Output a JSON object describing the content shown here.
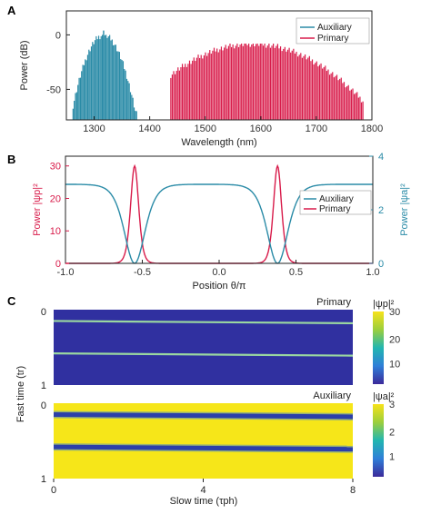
{
  "colors": {
    "primary": "#d81b4a",
    "auxiliary": "#2a8ba7"
  },
  "chart_data": [
    {
      "panel": "A",
      "type": "bar",
      "xlabel": "Wavelength (nm)",
      "ylabel": "Power (dB)",
      "xlim": [
        1250,
        1800
      ],
      "ylim": [
        -78,
        22
      ],
      "xticks": [
        "1300",
        "1400",
        "1500",
        "1600",
        "1700",
        "1800"
      ],
      "yticks": [
        "0",
        "-50"
      ],
      "legend": {
        "position": "top-right",
        "entries": [
          "Auxiliary",
          "Primary"
        ]
      },
      "series": [
        {
          "name": "Auxiliary",
          "color": "#2a8ba7",
          "center": 1317,
          "half_width": 58,
          "peak": 0,
          "floor": -72,
          "spacing": 2.2,
          "x_range": [
            1262,
            1377
          ]
        },
        {
          "name": "Primary",
          "color": "#d81b4a",
          "center": 1585,
          "half_width": 220,
          "peak": -8,
          "floor": -72,
          "spacing": 2.6,
          "x_range": [
            1438,
            1785
          ]
        }
      ]
    },
    {
      "panel": "B",
      "type": "line",
      "xlabel": "Position θ/π",
      "ylabel_left": "Power |ψp|²",
      "ylabel_right": "Power |ψa|²",
      "xlim": [
        -1.0,
        1.0
      ],
      "ylim_left": [
        0,
        33
      ],
      "ylim_right": [
        0,
        4
      ],
      "xticks": [
        "-1.0",
        "-0.5",
        "0.0",
        "0.5",
        "1.0"
      ],
      "yticks_left": [
        "0",
        "10",
        "20",
        "30"
      ],
      "yticks_right": [
        "0",
        "2",
        "4"
      ],
      "legend": {
        "position": "center-right",
        "entries": [
          "Auxiliary",
          "Primary"
        ]
      },
      "series": [
        {
          "name": "Primary",
          "axis": "left",
          "color": "#d81b4a",
          "peak": 30,
          "centers": [
            -0.55,
            0.38
          ],
          "width": 0.035
        },
        {
          "name": "Auxiliary",
          "axis": "right",
          "color": "#2a8ba7",
          "baseline": 2.95,
          "dip_to": 0,
          "centers": [
            -0.55,
            0.38
          ],
          "width": 0.09
        }
      ]
    },
    {
      "panel": "C",
      "type": "heatmap",
      "xlabel": "Slow time (τph)",
      "ylabel": "Fast time (tr)",
      "xticks": [
        "0",
        "4",
        "8"
      ],
      "yticks": [
        "0",
        "1"
      ],
      "maps": [
        {
          "name": "Primary",
          "colorbar_label": "|ψp|²",
          "colorbar_ticks": [
            "30",
            "20",
            "10"
          ],
          "background": "#3030a0",
          "pulse_start": [
            0.15,
            0.58
          ],
          "pulse_end": [
            0.18,
            0.61
          ],
          "pulse_color": "#9ad7a0"
        },
        {
          "name": "Auxiliary",
          "colorbar_label": "|ψa|²",
          "colorbar_ticks": [
            "3",
            "2",
            "1"
          ],
          "background": "#f6e619",
          "pulse_start": [
            0.15,
            0.58
          ],
          "pulse_end": [
            0.18,
            0.61
          ],
          "pulse_color": "#2c3fa8"
        }
      ]
    }
  ]
}
